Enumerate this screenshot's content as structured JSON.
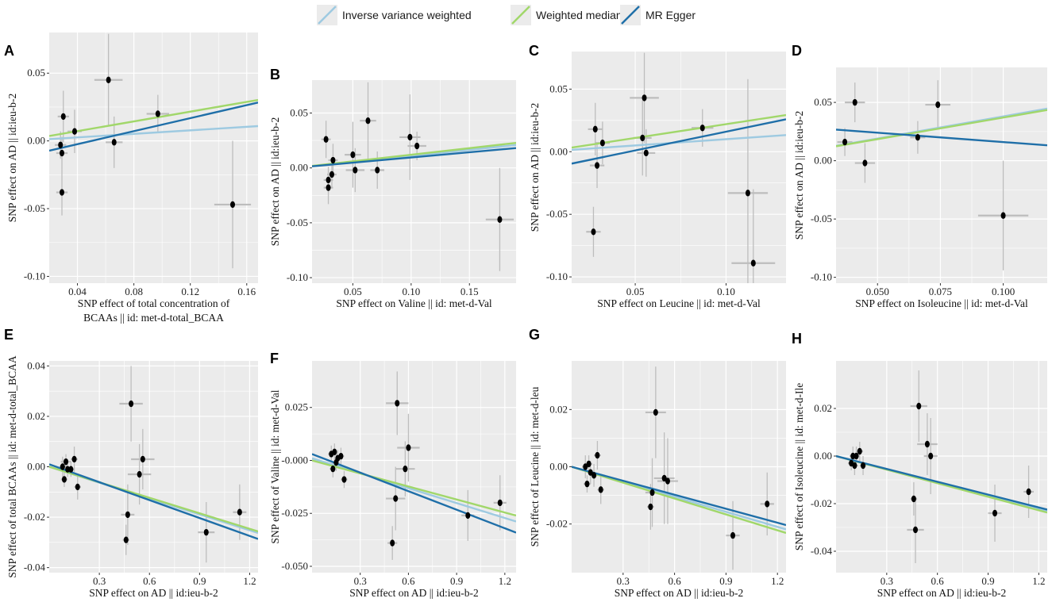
{
  "colors": {
    "ivw": "#9ecae1",
    "wm": "#a1d76a",
    "egger": "#1f6fa8",
    "panel_bg": "#ebebeb",
    "grid": "#ffffff",
    "error_bar": "#bdbdbd",
    "point": "#000000"
  },
  "legend": [
    {
      "key": "ivw",
      "label": "Inverse variance weighted"
    },
    {
      "key": "wm",
      "label": "Weighted median"
    },
    {
      "key": "egger",
      "label": "MR Egger"
    }
  ],
  "chart_data": [
    {
      "type": "scatter",
      "panel": "A",
      "xlabel": [
        "SNP effect of total concentration of",
        "BCAAs || id: met-d-total_BCAA"
      ],
      "ylabel": "SNP effect on AD || id:ieu-b-2",
      "xlim": [
        0.02,
        0.168
      ],
      "ylim": [
        -0.105,
        0.08
      ],
      "xticks": [
        0.04,
        0.08,
        0.12,
        0.16
      ],
      "xtick_labels": [
        "0.04",
        "0.08",
        "0.12",
        "0.16"
      ],
      "yticks": [
        -0.1,
        -0.05,
        0.0,
        0.05
      ],
      "ytick_labels": [
        "-0.10",
        "-0.05",
        "0.00",
        "0.05"
      ],
      "points": [
        {
          "x": 0.028,
          "y": -0.003,
          "xerr": 0.004,
          "yerr": 0.01
        },
        {
          "x": 0.029,
          "y": -0.038,
          "xerr": 0.004,
          "yerr": 0.017
        },
        {
          "x": 0.029,
          "y": -0.009,
          "xerr": 0.004,
          "yerr": 0.012
        },
        {
          "x": 0.03,
          "y": 0.018,
          "xerr": 0.004,
          "yerr": 0.019
        },
        {
          "x": 0.038,
          "y": 0.007,
          "xerr": 0.005,
          "yerr": 0.016
        },
        {
          "x": 0.062,
          "y": 0.045,
          "xerr": 0.01,
          "yerr": 0.034
        },
        {
          "x": 0.066,
          "y": -0.001,
          "xerr": 0.006,
          "yerr": 0.019
        },
        {
          "x": 0.097,
          "y": 0.02,
          "xerr": 0.008,
          "yerr": 0.014
        },
        {
          "x": 0.15,
          "y": -0.047,
          "xerr": 0.013,
          "yerr": 0.047
        }
      ],
      "lines": [
        {
          "key": "ivw",
          "intercept": 0.0,
          "slope": 0.065
        },
        {
          "key": "wm",
          "intercept": 0.0,
          "slope": 0.18
        },
        {
          "key": "egger",
          "intercept": -0.012,
          "slope": 0.24
        }
      ]
    },
    {
      "type": "scatter",
      "panel": "B",
      "xlabel": [
        "SNP effect on Valine || id: met-d-Val"
      ],
      "ylabel": "SNP effect on AD || id:ieu-b-2",
      "xlim": [
        0.015,
        0.19
      ],
      "ylim": [
        -0.105,
        0.08
      ],
      "xticks": [
        0.05,
        0.1,
        0.15
      ],
      "xtick_labels": [
        "0.05",
        "0.10",
        "0.15"
      ],
      "yticks": [
        -0.1,
        -0.05,
        0.0,
        0.05
      ],
      "ytick_labels": [
        "-0.10",
        "-0.05",
        "0.00",
        "0.05"
      ],
      "points": [
        {
          "x": 0.027,
          "y": 0.026,
          "xerr": 0.004,
          "yerr": 0.017
        },
        {
          "x": 0.029,
          "y": -0.011,
          "xerr": 0.004,
          "yerr": 0.012
        },
        {
          "x": 0.029,
          "y": -0.018,
          "xerr": 0.004,
          "yerr": 0.015
        },
        {
          "x": 0.032,
          "y": -0.006,
          "xerr": 0.004,
          "yerr": 0.012
        },
        {
          "x": 0.033,
          "y": 0.007,
          "xerr": 0.004,
          "yerr": 0.015
        },
        {
          "x": 0.05,
          "y": 0.012,
          "xerr": 0.007,
          "yerr": 0.03
        },
        {
          "x": 0.052,
          "y": -0.002,
          "xerr": 0.008,
          "yerr": 0.02
        },
        {
          "x": 0.063,
          "y": 0.043,
          "xerr": 0.007,
          "yerr": 0.035
        },
        {
          "x": 0.071,
          "y": -0.002,
          "xerr": 0.006,
          "yerr": 0.017
        },
        {
          "x": 0.099,
          "y": 0.028,
          "xerr": 0.009,
          "yerr": 0.039
        },
        {
          "x": 0.105,
          "y": 0.02,
          "xerr": 0.008,
          "yerr": 0.013
        },
        {
          "x": 0.176,
          "y": -0.047,
          "xerr": 0.012,
          "yerr": 0.047
        }
      ],
      "lines": [
        {
          "key": "ivw",
          "intercept": 0.0,
          "slope": 0.11
        },
        {
          "key": "wm",
          "intercept": 0.0,
          "slope": 0.12
        },
        {
          "key": "egger",
          "intercept": 0.0,
          "slope": 0.095
        }
      ]
    },
    {
      "type": "scatter",
      "panel": "C",
      "xlabel": [
        "SNP effect on Leucine || id: met-d-Val"
      ],
      "ylabel": "SNP effect on AD || id:ieu-b-2",
      "xlim": [
        0.015,
        0.133
      ],
      "ylim": [
        -0.105,
        0.08
      ],
      "xticks": [
        0.05,
        0.1
      ],
      "xtick_labels": [
        "0.05",
        "0.10"
      ],
      "yticks": [
        -0.1,
        -0.05,
        0.0,
        0.05
      ],
      "ytick_labels": [
        "-0.10",
        "-0.05",
        "0.00",
        "0.05"
      ],
      "points": [
        {
          "x": 0.027,
          "y": -0.064,
          "xerr": 0.004,
          "yerr": 0.02
        },
        {
          "x": 0.028,
          "y": 0.018,
          "xerr": 0.004,
          "yerr": 0.021
        },
        {
          "x": 0.029,
          "y": -0.011,
          "xerr": 0.004,
          "yerr": 0.018
        },
        {
          "x": 0.032,
          "y": 0.007,
          "xerr": 0.004,
          "yerr": 0.017
        },
        {
          "x": 0.054,
          "y": 0.011,
          "xerr": 0.005,
          "yerr": 0.03
        },
        {
          "x": 0.055,
          "y": 0.043,
          "xerr": 0.008,
          "yerr": 0.036
        },
        {
          "x": 0.056,
          "y": -0.001,
          "xerr": 0.005,
          "yerr": 0.019
        },
        {
          "x": 0.087,
          "y": 0.019,
          "xerr": 0.006,
          "yerr": 0.015
        },
        {
          "x": 0.112,
          "y": -0.033,
          "xerr": 0.011,
          "yerr": 0.091
        },
        {
          "x": 0.115,
          "y": -0.089,
          "xerr": 0.012,
          "yerr": 0.059
        }
      ],
      "lines": [
        {
          "key": "ivw",
          "intercept": 0.0,
          "slope": 0.1
        },
        {
          "key": "wm",
          "intercept": 0.0,
          "slope": 0.22
        },
        {
          "key": "egger",
          "intercept": -0.014,
          "slope": 0.3
        }
      ]
    },
    {
      "type": "scatter",
      "panel": "D",
      "xlabel": [
        "SNP effect on Isoleucine || id: met-d-Val"
      ],
      "ylabel": "SNP effect on AD || id:ieu-b-2",
      "xlim": [
        0.0335,
        0.1175
      ],
      "ylim": [
        -0.105,
        0.08
      ],
      "xticks": [
        0.05,
        0.075,
        0.1
      ],
      "xtick_labels": [
        "0.050",
        "0.075",
        "0.100"
      ],
      "yticks": [
        -0.1,
        -0.05,
        0.0,
        0.05
      ],
      "ytick_labels": [
        "-0.10",
        "-0.05",
        "0.00",
        "0.05"
      ],
      "points": [
        {
          "x": 0.037,
          "y": 0.016,
          "xerr": 0.003,
          "yerr": 0.012
        },
        {
          "x": 0.041,
          "y": 0.05,
          "xerr": 0.004,
          "yerr": 0.017
        },
        {
          "x": 0.045,
          "y": -0.002,
          "xerr": 0.004,
          "yerr": 0.017
        },
        {
          "x": 0.066,
          "y": 0.02,
          "xerr": 0.003,
          "yerr": 0.014
        },
        {
          "x": 0.074,
          "y": 0.048,
          "xerr": 0.005,
          "yerr": 0.021
        },
        {
          "x": 0.1,
          "y": -0.047,
          "xerr": 0.01,
          "yerr": 0.047
        }
      ],
      "lines": [
        {
          "key": "ivw",
          "intercept": 0.0,
          "slope": 0.38
        },
        {
          "key": "wm",
          "intercept": 0.0,
          "slope": 0.37
        },
        {
          "key": "egger",
          "intercept": 0.032,
          "slope": -0.16
        }
      ]
    },
    {
      "type": "scatter",
      "panel": "E",
      "xlabel": [
        "SNP effect on AD || id:ieu-b-2"
      ],
      "ylabel": "SNP effect of total BCAAs || id: met-d-total_BCAA",
      "xlim": [
        0.0,
        1.25
      ],
      "ylim": [
        -0.042,
        0.042
      ],
      "xticks": [
        0.3,
        0.6,
        0.9,
        1.2
      ],
      "xtick_labels": [
        "0.3",
        "0.6",
        "0.9",
        "1.2"
      ],
      "yticks": [
        -0.04,
        -0.02,
        0.0,
        0.02,
        0.04
      ],
      "ytick_labels": [
        "-0.04",
        "-0.02",
        "0.00",
        "0.02",
        "0.04"
      ],
      "points": [
        {
          "x": 0.08,
          "y": 0.0,
          "xerr": 0.02,
          "yerr": 0.004
        },
        {
          "x": 0.09,
          "y": -0.005,
          "xerr": 0.02,
          "yerr": 0.003
        },
        {
          "x": 0.1,
          "y": 0.002,
          "xerr": 0.03,
          "yerr": 0.003
        },
        {
          "x": 0.11,
          "y": -0.001,
          "xerr": 0.03,
          "yerr": 0.003
        },
        {
          "x": 0.13,
          "y": -0.001,
          "xerr": 0.02,
          "yerr": 0.003
        },
        {
          "x": 0.15,
          "y": 0.003,
          "xerr": 0.02,
          "yerr": 0.005
        },
        {
          "x": 0.17,
          "y": -0.008,
          "xerr": 0.02,
          "yerr": 0.005
        },
        {
          "x": 0.46,
          "y": -0.029,
          "xerr": 0.02,
          "yerr": 0.006
        },
        {
          "x": 0.47,
          "y": -0.019,
          "xerr": 0.04,
          "yerr": 0.012
        },
        {
          "x": 0.49,
          "y": 0.025,
          "xerr": 0.07,
          "yerr": 0.015
        },
        {
          "x": 0.54,
          "y": -0.003,
          "xerr": 0.07,
          "yerr": 0.012
        },
        {
          "x": 0.56,
          "y": 0.003,
          "xerr": 0.07,
          "yerr": 0.012
        },
        {
          "x": 0.94,
          "y": -0.026,
          "xerr": 0.05,
          "yerr": 0.012
        },
        {
          "x": 1.14,
          "y": -0.018,
          "xerr": 0.04,
          "yerr": 0.011
        }
      ],
      "lines": [
        {
          "key": "ivw",
          "intercept": 0.0,
          "slope": -0.021
        },
        {
          "key": "wm",
          "intercept": 0.0,
          "slope": -0.0205
        },
        {
          "key": "egger",
          "intercept": 0.001,
          "slope": -0.0237
        }
      ]
    },
    {
      "type": "scatter",
      "panel": "F",
      "xlabel": [
        "SNP effect on AD || id:ieu-b-2"
      ],
      "ylabel": "SNP effect of Valine || id: met-d-Val",
      "xlim": [
        0.0,
        1.27
      ],
      "ylim": [
        -0.053,
        0.047
      ],
      "xticks": [
        0.3,
        0.6,
        0.9,
        1.2
      ],
      "xtick_labels": [
        "0.3",
        "0.6",
        "0.9",
        "1.2"
      ],
      "yticks": [
        -0.05,
        -0.025,
        0.0,
        0.025
      ],
      "ytick_labels": [
        "-0.050",
        "-0.025",
        "-0.000",
        "0.025"
      ],
      "points": [
        {
          "x": 0.12,
          "y": 0.003,
          "xerr": 0.02,
          "yerr": 0.004
        },
        {
          "x": 0.13,
          "y": -0.004,
          "xerr": 0.02,
          "yerr": 0.004
        },
        {
          "x": 0.14,
          "y": 0.004,
          "xerr": 0.02,
          "yerr": 0.004
        },
        {
          "x": 0.15,
          "y": -0.001,
          "xerr": 0.02,
          "yerr": 0.004
        },
        {
          "x": 0.16,
          "y": 0.001,
          "xerr": 0.02,
          "yerr": 0.004
        },
        {
          "x": 0.18,
          "y": 0.002,
          "xerr": 0.02,
          "yerr": 0.004
        },
        {
          "x": 0.2,
          "y": -0.009,
          "xerr": 0.02,
          "yerr": 0.004
        },
        {
          "x": 0.5,
          "y": -0.039,
          "xerr": 0.03,
          "yerr": 0.008
        },
        {
          "x": 0.52,
          "y": -0.018,
          "xerr": 0.06,
          "yerr": 0.015
        },
        {
          "x": 0.53,
          "y": 0.027,
          "xerr": 0.07,
          "yerr": 0.015
        },
        {
          "x": 0.58,
          "y": -0.004,
          "xerr": 0.06,
          "yerr": 0.013
        },
        {
          "x": 0.6,
          "y": 0.006,
          "xerr": 0.07,
          "yerr": 0.016
        },
        {
          "x": 0.97,
          "y": -0.026,
          "xerr": 0.04,
          "yerr": 0.012
        },
        {
          "x": 1.17,
          "y": -0.02,
          "xerr": 0.04,
          "yerr": 0.013
        }
      ],
      "lines": [
        {
          "key": "ivw",
          "intercept": 0.001,
          "slope": -0.0235
        },
        {
          "key": "wm",
          "intercept": 0.0,
          "slope": -0.0205
        },
        {
          "key": "egger",
          "intercept": 0.003,
          "slope": -0.0292
        }
      ]
    },
    {
      "type": "scatter",
      "panel": "G",
      "xlabel": [
        "SNP effect on AD || id:ieu-b-2"
      ],
      "ylabel": "SNP effect of Leucine || id: met-d-leu",
      "xlim": [
        0.0,
        1.25
      ],
      "ylim": [
        -0.037,
        0.037
      ],
      "xticks": [
        0.3,
        0.6,
        0.9,
        1.2
      ],
      "xtick_labels": [
        "0.3",
        "0.6",
        "0.9",
        "1.2"
      ],
      "yticks": [
        -0.02,
        0.0,
        0.02
      ],
      "ytick_labels": [
        "-0.02",
        "0.00",
        "0.02"
      ],
      "points": [
        {
          "x": 0.08,
          "y": 0.0,
          "xerr": 0.02,
          "yerr": 0.004
        },
        {
          "x": 0.09,
          "y": -0.006,
          "xerr": 0.02,
          "yerr": 0.003
        },
        {
          "x": 0.1,
          "y": 0.001,
          "xerr": 0.02,
          "yerr": 0.003
        },
        {
          "x": 0.11,
          "y": -0.002,
          "xerr": 0.02,
          "yerr": 0.004
        },
        {
          "x": 0.13,
          "y": -0.003,
          "xerr": 0.02,
          "yerr": 0.004
        },
        {
          "x": 0.15,
          "y": 0.004,
          "xerr": 0.02,
          "yerr": 0.005
        },
        {
          "x": 0.17,
          "y": -0.008,
          "xerr": 0.02,
          "yerr": 0.005
        },
        {
          "x": 0.46,
          "y": -0.014,
          "xerr": 0.02,
          "yerr": 0.008
        },
        {
          "x": 0.47,
          "y": -0.009,
          "xerr": 0.04,
          "yerr": 0.012
        },
        {
          "x": 0.49,
          "y": 0.019,
          "xerr": 0.06,
          "yerr": 0.016
        },
        {
          "x": 0.54,
          "y": -0.004,
          "xerr": 0.06,
          "yerr": 0.016
        },
        {
          "x": 0.56,
          "y": -0.005,
          "xerr": 0.06,
          "yerr": 0.015
        },
        {
          "x": 0.94,
          "y": -0.024,
          "xerr": 0.04,
          "yerr": 0.012
        },
        {
          "x": 1.14,
          "y": -0.013,
          "xerr": 0.04,
          "yerr": 0.011
        }
      ],
      "lines": [
        {
          "key": "ivw",
          "intercept": 0.0,
          "slope": -0.0175
        },
        {
          "key": "wm",
          "intercept": 0.0,
          "slope": -0.0185
        },
        {
          "key": "egger",
          "intercept": 0.0,
          "slope": -0.0163
        }
      ]
    },
    {
      "type": "scatter",
      "panel": "H",
      "xlabel": [
        "SNP effect on AD || id:ieu-b-2"
      ],
      "ylabel": "SNP effect of Isoleucine || id: met-d-Ile",
      "xlim": [
        0.0,
        1.25
      ],
      "ylim": [
        -0.049,
        0.04
      ],
      "xticks": [
        0.3,
        0.6,
        0.9,
        1.2
      ],
      "xtick_labels": [
        "0.3",
        "0.6",
        "0.9",
        "1.2"
      ],
      "yticks": [
        -0.04,
        -0.02,
        0.0,
        0.02
      ],
      "ytick_labels": [
        "-0.04",
        "-0.02",
        "0.00",
        "0.02"
      ],
      "points": [
        {
          "x": 0.09,
          "y": -0.003,
          "xerr": 0.02,
          "yerr": 0.003
        },
        {
          "x": 0.1,
          "y": 0.0,
          "xerr": 0.02,
          "yerr": 0.004
        },
        {
          "x": 0.11,
          "y": -0.004,
          "xerr": 0.02,
          "yerr": 0.004
        },
        {
          "x": 0.12,
          "y": 0.0,
          "xerr": 0.02,
          "yerr": 0.004
        },
        {
          "x": 0.14,
          "y": 0.002,
          "xerr": 0.02,
          "yerr": 0.004
        },
        {
          "x": 0.16,
          "y": -0.004,
          "xerr": 0.02,
          "yerr": 0.004
        },
        {
          "x": 0.46,
          "y": -0.018,
          "xerr": 0.02,
          "yerr": 0.007
        },
        {
          "x": 0.47,
          "y": -0.031,
          "xerr": 0.05,
          "yerr": 0.014
        },
        {
          "x": 0.49,
          "y": 0.021,
          "xerr": 0.05,
          "yerr": 0.015
        },
        {
          "x": 0.54,
          "y": 0.005,
          "xerr": 0.06,
          "yerr": 0.013
        },
        {
          "x": 0.56,
          "y": 0.0,
          "xerr": 0.04,
          "yerr": 0.016
        },
        {
          "x": 0.94,
          "y": -0.024,
          "xerr": 0.04,
          "yerr": 0.012
        },
        {
          "x": 1.14,
          "y": -0.015,
          "xerr": 0.03,
          "yerr": 0.011
        }
      ],
      "lines": [
        {
          "key": "ivw",
          "intercept": 0.0,
          "slope": -0.0185
        },
        {
          "key": "wm",
          "intercept": 0.0,
          "slope": -0.019
        },
        {
          "key": "egger",
          "intercept": 0.0,
          "slope": -0.018
        }
      ]
    }
  ]
}
